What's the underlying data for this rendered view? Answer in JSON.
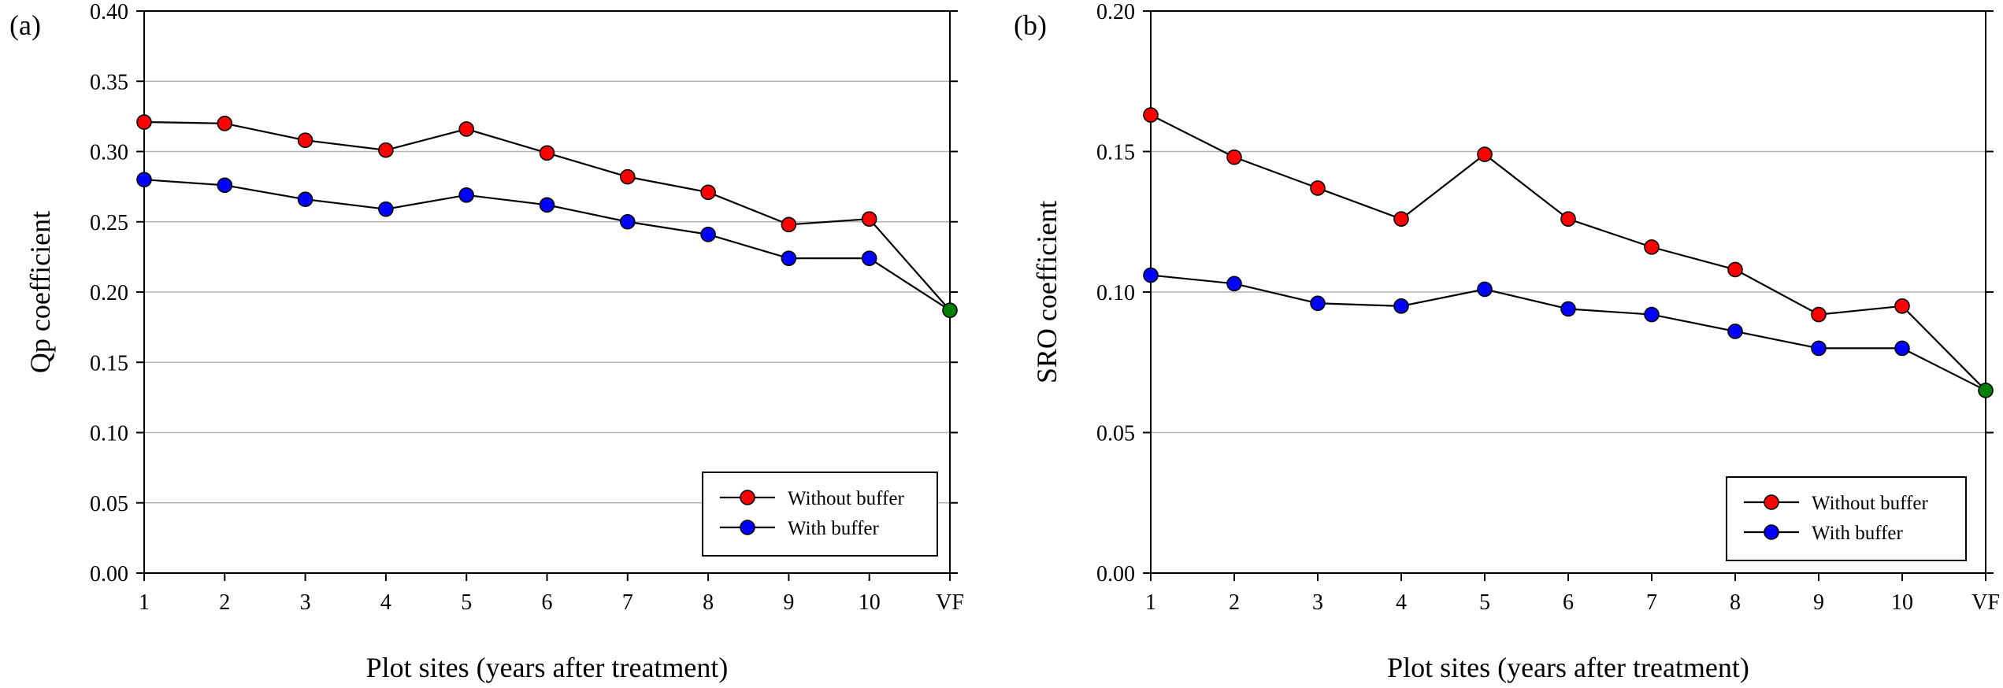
{
  "chart_data": [
    {
      "type": "line",
      "panel_label": "(a)",
      "xlabel": "Plot sites (years after treatment)",
      "ylabel": "Qp coefficient",
      "categories": [
        "1",
        "2",
        "3",
        "4",
        "5",
        "6",
        "7",
        "8",
        "9",
        "10",
        "VF"
      ],
      "ylim": [
        0,
        0.4
      ],
      "yticks": [
        "0.00",
        "0.05",
        "0.10",
        "0.15",
        "0.20",
        "0.25",
        "0.30",
        "0.35",
        "0.40"
      ],
      "grid": true,
      "legend_position": "bottom-right",
      "series": [
        {
          "name": "Without buffer",
          "color": "#ff0000",
          "values": [
            0.321,
            0.32,
            0.308,
            0.301,
            0.316,
            0.299,
            0.282,
            0.271,
            0.248,
            0.252,
            null
          ]
        },
        {
          "name": "With buffer",
          "color": "#0000ff",
          "values": [
            0.28,
            0.276,
            0.266,
            0.259,
            0.269,
            0.262,
            0.25,
            0.241,
            0.224,
            0.224,
            null
          ]
        }
      ],
      "endpoint": {
        "category": "VF",
        "value": 0.187,
        "color": "#008000"
      }
    },
    {
      "type": "line",
      "panel_label": "(b)",
      "xlabel": "Plot sites (years after treatment)",
      "ylabel": "SRO coefficient",
      "categories": [
        "1",
        "2",
        "3",
        "4",
        "5",
        "6",
        "7",
        "8",
        "9",
        "10",
        "VF"
      ],
      "ylim": [
        0,
        0.2
      ],
      "yticks": [
        "0.00",
        "0.05",
        "0.10",
        "0.15",
        "0.20"
      ],
      "grid": true,
      "legend_position": "bottom-right",
      "series": [
        {
          "name": "Without buffer",
          "color": "#ff0000",
          "values": [
            0.163,
            0.148,
            0.137,
            0.126,
            0.149,
            0.126,
            0.116,
            0.108,
            0.092,
            0.095,
            null
          ]
        },
        {
          "name": "With buffer",
          "color": "#0000ff",
          "values": [
            0.106,
            0.103,
            0.096,
            0.095,
            0.101,
            0.094,
            0.092,
            0.086,
            0.08,
            0.08,
            null
          ]
        }
      ],
      "endpoint": {
        "category": "VF",
        "value": 0.065,
        "color": "#008000"
      }
    }
  ]
}
